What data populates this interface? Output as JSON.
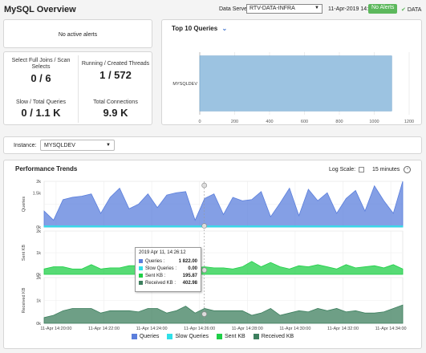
{
  "header": {
    "title": "MySQL Overview",
    "data_server_label": "Data Server:",
    "data_server_value": "RTV-DATA-INFRA",
    "datetime": "11-Apr-2019 14:34",
    "alerts_badge": "No Alerts",
    "data_label": "DATA"
  },
  "alerts_panel": {
    "text": "No active alerts"
  },
  "kpis": {
    "full_joins_label": "Select Full Joins / Scan Selects",
    "full_joins_value": "0 / 6",
    "threads_label": "Running / Created Threads",
    "threads_value": "1 / 572",
    "slow_label": "Slow / Total Queries",
    "slow_value": "0 / 1.1 K",
    "connections_label": "Total Connections",
    "connections_value": "9.9 K"
  },
  "top_queries": {
    "title": "Top 10 Queries",
    "chart_data": {
      "type": "bar",
      "categories": [
        "MYSQLDEV"
      ],
      "values": [
        1100
      ],
      "xlim": [
        0,
        1200
      ],
      "xticks": [
        "0",
        "200",
        "400",
        "600",
        "800",
        "1000",
        "1200"
      ]
    }
  },
  "instance": {
    "label": "Instance:",
    "value": "MYSQLDEV"
  },
  "trends": {
    "title": "Performance Trends",
    "log_scale_label": "Log Scale:",
    "time_range": "15 minutes",
    "panels": [
      {
        "ylabel": "Queries",
        "yticks": [
          "2k",
          "1.5k",
          "0k"
        ]
      },
      {
        "ylabel": "Sent KB",
        "yticks": [
          "2k",
          "1k",
          "0k"
        ]
      },
      {
        "ylabel": "Received KB",
        "yticks": [
          "2k",
          "1k",
          "0k"
        ]
      }
    ],
    "xticks": [
      "11-Apr 14:20:00",
      "11-Apr 14:22:00",
      "11-Apr 14:24:00",
      "11-Apr 14:26:00",
      "11-Apr 14:28:00",
      "11-Apr 14:30:00",
      "11-Apr 14:32:00",
      "11-Apr 14:34:00"
    ],
    "tooltip": {
      "time": "2019 Apr 11, 14:26:12",
      "rows": [
        {
          "label": "Queries :",
          "value": "1 822.00",
          "color": "#5b7fdc"
        },
        {
          "label": "Slow Queries :",
          "value": "0.00",
          "color": "#2fe0e8"
        },
        {
          "label": "Sent KB :",
          "value": "195.87",
          "color": "#1fcf47"
        },
        {
          "label": "Received KB :",
          "value": "402.98",
          "color": "#3d7f5e"
        }
      ]
    },
    "legend": [
      {
        "name": "Queries",
        "color": "#5b7fdc"
      },
      {
        "name": "Slow Queries",
        "color": "#2fe0e8"
      },
      {
        "name": "Sent KB",
        "color": "#1fcf47"
      },
      {
        "name": "Received KB",
        "color": "#3d7f5e"
      }
    ],
    "chart_data": {
      "type": "area",
      "x_range": [
        "14:19:30",
        "14:34:30"
      ],
      "ylim_queries": [
        0,
        2000
      ],
      "ylim_kb": [
        0,
        2000
      ],
      "series": [
        {
          "name": "Queries",
          "values": [
            700,
            300,
            1200,
            1300,
            1350,
            1450,
            600,
            1300,
            1700,
            800,
            1000,
            1450,
            850,
            1400,
            1500,
            1550,
            300,
            1250,
            1450,
            550,
            1300,
            1150,
            1200,
            1550,
            450,
            1050,
            1700,
            500,
            1650,
            1150,
            1500,
            600,
            1250,
            1600,
            700,
            1800,
            1150,
            600,
            2000
          ]
        },
        {
          "name": "Slow Queries",
          "values": [
            50,
            50,
            50,
            50,
            50,
            50,
            50,
            50,
            50,
            50,
            50,
            50,
            50,
            50,
            50,
            50,
            50,
            50,
            50,
            50,
            50,
            50,
            50,
            50,
            50,
            50,
            50,
            50,
            50,
            50,
            50,
            50,
            50,
            50,
            50,
            50,
            50,
            50,
            50
          ]
        },
        {
          "name": "Sent KB",
          "values": [
            250,
            350,
            350,
            250,
            250,
            450,
            250,
            300,
            300,
            400,
            400,
            350,
            250,
            350,
            450,
            450,
            300,
            350,
            300,
            300,
            250,
            350,
            600,
            350,
            550,
            350,
            250,
            400,
            350,
            450,
            350,
            250,
            450,
            300,
            350,
            400,
            300,
            450,
            250
          ]
        },
        {
          "name": "Received KB",
          "values": [
            250,
            350,
            550,
            650,
            650,
            650,
            450,
            550,
            550,
            550,
            500,
            650,
            650,
            450,
            550,
            750,
            450,
            650,
            550,
            550,
            550,
            550,
            350,
            450,
            650,
            350,
            450,
            550,
            500,
            650,
            550,
            650,
            500,
            550,
            450,
            450,
            500,
            650,
            800
          ]
        }
      ]
    }
  }
}
